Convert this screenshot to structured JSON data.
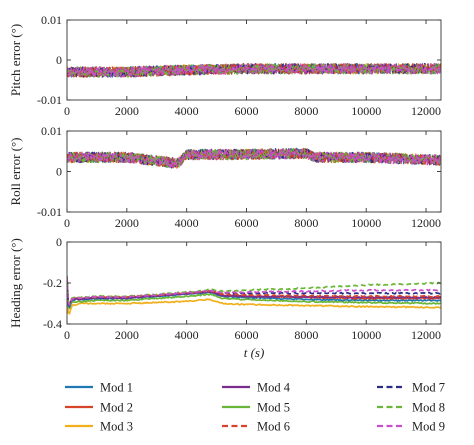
{
  "chart_data": [
    {
      "type": "line",
      "panel": "pitch",
      "ylabel": "Pitch error (°)",
      "xlim": [
        0,
        12500
      ],
      "ylim": [
        -0.01,
        0.01
      ],
      "xticks": [
        0,
        2000,
        4000,
        6000,
        8000,
        10000,
        12000
      ],
      "yticks": [
        0.01,
        0,
        -0.01
      ],
      "ytick_labels": [
        "0.01",
        "0",
        "-0.01"
      ],
      "xtick_labels": [
        "0",
        "2000",
        "4000",
        "6000",
        "8000",
        "10000",
        "12000"
      ],
      "grid": false,
      "series": [
        {
          "name": "Mod 1",
          "x": [
            0,
            2000,
            4000,
            6000,
            8000,
            10000,
            12500
          ],
          "y": [
            -0.003,
            -0.003,
            -0.0025,
            -0.0022,
            -0.0022,
            -0.0022,
            -0.0022
          ]
        },
        {
          "name": "Mod 2",
          "x": [
            0,
            2000,
            4000,
            6000,
            8000,
            10000,
            12500
          ],
          "y": [
            -0.003,
            -0.003,
            -0.0025,
            -0.0022,
            -0.0022,
            -0.0022,
            -0.0022
          ]
        },
        {
          "name": "Mod 3",
          "x": [
            0,
            2000,
            4000,
            6000,
            8000,
            10000,
            12500
          ],
          "y": [
            -0.003,
            -0.003,
            -0.0025,
            -0.0022,
            -0.0022,
            -0.0022,
            -0.0022
          ]
        },
        {
          "name": "Mod 4",
          "x": [
            0,
            2000,
            4000,
            6000,
            8000,
            10000,
            12500
          ],
          "y": [
            -0.003,
            -0.003,
            -0.0025,
            -0.0022,
            -0.0022,
            -0.0022,
            -0.0022
          ]
        },
        {
          "name": "Mod 5",
          "x": [
            0,
            2000,
            4000,
            6000,
            8000,
            10000,
            12500
          ],
          "y": [
            -0.003,
            -0.003,
            -0.0025,
            -0.0022,
            -0.0022,
            -0.0022,
            -0.0022
          ]
        },
        {
          "name": "Mod 6",
          "x": [
            0,
            2000,
            4000,
            6000,
            8000,
            10000,
            12500
          ],
          "y": [
            -0.003,
            -0.003,
            -0.0025,
            -0.0022,
            -0.0022,
            -0.0022,
            -0.0022
          ]
        },
        {
          "name": "Mod 7",
          "x": [
            0,
            2000,
            4000,
            6000,
            8000,
            10000,
            12500
          ],
          "y": [
            -0.003,
            -0.003,
            -0.0025,
            -0.0022,
            -0.0022,
            -0.0022,
            -0.0022
          ]
        },
        {
          "name": "Mod 8",
          "x": [
            0,
            2000,
            4000,
            6000,
            8000,
            10000,
            12500
          ],
          "y": [
            -0.003,
            -0.003,
            -0.0025,
            -0.0022,
            -0.0022,
            -0.0022,
            -0.0022
          ]
        },
        {
          "name": "Mod 9",
          "x": [
            0,
            2000,
            4000,
            6000,
            8000,
            10000,
            12500
          ],
          "y": [
            -0.003,
            -0.003,
            -0.0025,
            -0.0022,
            -0.0022,
            -0.0022,
            -0.0022
          ]
        }
      ]
    },
    {
      "type": "line",
      "panel": "roll",
      "ylabel": "Roll error (°)",
      "xlim": [
        0,
        12500
      ],
      "ylim": [
        -0.01,
        0.01
      ],
      "xticks": [
        0,
        2000,
        4000,
        6000,
        8000,
        10000,
        12000
      ],
      "yticks": [
        0.01,
        0,
        -0.01
      ],
      "ytick_labels": [
        "0.01",
        "0",
        "-0.01"
      ],
      "xtick_labels": [
        "0",
        "2000",
        "4000",
        "6000",
        "8000",
        "10000",
        "12000"
      ],
      "grid": false,
      "series": [
        {
          "name": "Mod 1",
          "x": [
            0,
            2000,
            3700,
            4000,
            6000,
            8000,
            8300,
            10000,
            12500
          ],
          "y": [
            0.0035,
            0.0035,
            0.002,
            0.0042,
            0.0042,
            0.0045,
            0.0035,
            0.0035,
            0.0028
          ]
        },
        {
          "name": "Mod 2",
          "x": [
            0,
            2000,
            3700,
            4000,
            6000,
            8000,
            8300,
            10000,
            12500
          ],
          "y": [
            0.0035,
            0.0035,
            0.002,
            0.0042,
            0.0042,
            0.0045,
            0.0035,
            0.0035,
            0.0028
          ]
        },
        {
          "name": "Mod 3",
          "x": [
            0,
            2000,
            3700,
            4000,
            6000,
            8000,
            8300,
            10000,
            12500
          ],
          "y": [
            0.0035,
            0.0035,
            0.002,
            0.0042,
            0.0042,
            0.0045,
            0.0035,
            0.0035,
            0.0028
          ]
        },
        {
          "name": "Mod 4",
          "x": [
            0,
            2000,
            3700,
            4000,
            6000,
            8000,
            8300,
            10000,
            12500
          ],
          "y": [
            0.0035,
            0.0035,
            0.002,
            0.0042,
            0.0042,
            0.0045,
            0.0035,
            0.0035,
            0.0028
          ]
        },
        {
          "name": "Mod 5",
          "x": [
            0,
            2000,
            3700,
            4000,
            6000,
            8000,
            8300,
            10000,
            12500
          ],
          "y": [
            0.0035,
            0.0035,
            0.002,
            0.0042,
            0.0042,
            0.0045,
            0.0035,
            0.0035,
            0.0028
          ]
        },
        {
          "name": "Mod 6",
          "x": [
            0,
            2000,
            3700,
            4000,
            6000,
            8000,
            8300,
            10000,
            12500
          ],
          "y": [
            0.0035,
            0.0035,
            0.002,
            0.0042,
            0.0042,
            0.0045,
            0.0035,
            0.0035,
            0.0028
          ]
        },
        {
          "name": "Mod 7",
          "x": [
            0,
            2000,
            3700,
            4000,
            6000,
            8000,
            8300,
            10000,
            12500
          ],
          "y": [
            0.0035,
            0.0035,
            0.002,
            0.0042,
            0.0042,
            0.0045,
            0.0035,
            0.0035,
            0.0028
          ]
        },
        {
          "name": "Mod 8",
          "x": [
            0,
            2000,
            3700,
            4000,
            6000,
            8000,
            8300,
            10000,
            12500
          ],
          "y": [
            0.0035,
            0.0035,
            0.002,
            0.0042,
            0.0042,
            0.0045,
            0.0035,
            0.0035,
            0.0028
          ]
        },
        {
          "name": "Mod 9",
          "x": [
            0,
            2000,
            3700,
            4000,
            6000,
            8000,
            8300,
            10000,
            12500
          ],
          "y": [
            0.0035,
            0.0035,
            0.002,
            0.0042,
            0.0042,
            0.0045,
            0.0035,
            0.0035,
            0.0028
          ]
        }
      ]
    },
    {
      "type": "line",
      "panel": "heading",
      "ylabel": "Heading error (°)",
      "xlabel": "t (s)",
      "xlim": [
        0,
        12500
      ],
      "ylim": [
        -0.4,
        0
      ],
      "xticks": [
        0,
        2000,
        4000,
        6000,
        8000,
        10000,
        12000
      ],
      "yticks": [
        0,
        -0.2,
        -0.4
      ],
      "ytick_labels": [
        "0",
        "-0.2",
        "-0.4"
      ],
      "xtick_labels": [
        "0",
        "2000",
        "4000",
        "6000",
        "8000",
        "10000",
        "12000"
      ],
      "grid": false,
      "series": [
        {
          "name": "Mod 1",
          "x": [
            0,
            50,
            150,
            300,
            500,
            1000,
            2000,
            3000,
            4000,
            4800,
            5000,
            5200,
            6000,
            8000,
            10000,
            12500
          ],
          "y": [
            -0.18,
            -0.33,
            -0.285,
            -0.28,
            -0.28,
            -0.275,
            -0.275,
            -0.265,
            -0.255,
            -0.245,
            -0.255,
            -0.265,
            -0.27,
            -0.28,
            -0.285,
            -0.285
          ]
        },
        {
          "name": "Mod 2",
          "x": [
            0,
            50,
            150,
            300,
            500,
            1000,
            2000,
            3000,
            4000,
            4800,
            5000,
            5200,
            6000,
            8000,
            10000,
            12500
          ],
          "y": [
            -0.17,
            -0.32,
            -0.28,
            -0.275,
            -0.275,
            -0.27,
            -0.27,
            -0.26,
            -0.25,
            -0.24,
            -0.25,
            -0.26,
            -0.265,
            -0.27,
            -0.275,
            -0.275
          ]
        },
        {
          "name": "Mod 3",
          "x": [
            0,
            50,
            150,
            300,
            500,
            1000,
            2000,
            3000,
            4000,
            4800,
            5000,
            5200,
            6000,
            8000,
            10000,
            12500
          ],
          "y": [
            -0.22,
            -0.37,
            -0.31,
            -0.305,
            -0.3,
            -0.3,
            -0.3,
            -0.295,
            -0.29,
            -0.28,
            -0.29,
            -0.3,
            -0.305,
            -0.31,
            -0.315,
            -0.32
          ]
        },
        {
          "name": "Mod 4",
          "x": [
            0,
            50,
            150,
            300,
            500,
            1000,
            2000,
            3000,
            4000,
            4800,
            5000,
            5200,
            6000,
            8000,
            10000,
            12500
          ],
          "y": [
            -0.175,
            -0.325,
            -0.28,
            -0.278,
            -0.278,
            -0.273,
            -0.273,
            -0.262,
            -0.252,
            -0.242,
            -0.252,
            -0.262,
            -0.265,
            -0.268,
            -0.27,
            -0.27
          ]
        },
        {
          "name": "Mod 5",
          "x": [
            0,
            50,
            150,
            300,
            500,
            1000,
            2000,
            3000,
            4000,
            4800,
            5000,
            5200,
            6000,
            8000,
            10000,
            12500
          ],
          "y": [
            -0.19,
            -0.34,
            -0.295,
            -0.29,
            -0.29,
            -0.285,
            -0.285,
            -0.275,
            -0.265,
            -0.255,
            -0.265,
            -0.275,
            -0.28,
            -0.29,
            -0.295,
            -0.3
          ]
        },
        {
          "name": "Mod 6",
          "x": [
            0,
            50,
            150,
            300,
            500,
            1000,
            2000,
            3000,
            4000,
            4800,
            5000,
            5200,
            6000,
            8000,
            10000,
            12500
          ],
          "y": [
            -0.17,
            -0.32,
            -0.278,
            -0.273,
            -0.273,
            -0.268,
            -0.268,
            -0.258,
            -0.248,
            -0.238,
            -0.246,
            -0.255,
            -0.258,
            -0.262,
            -0.265,
            -0.265
          ]
        },
        {
          "name": "Mod 7",
          "x": [
            0,
            50,
            150,
            300,
            500,
            1000,
            2000,
            3000,
            4000,
            4800,
            5000,
            5200,
            6000,
            8000,
            10000,
            12500
          ],
          "y": [
            -0.175,
            -0.32,
            -0.28,
            -0.275,
            -0.275,
            -0.27,
            -0.27,
            -0.26,
            -0.25,
            -0.24,
            -0.245,
            -0.25,
            -0.25,
            -0.25,
            -0.25,
            -0.25
          ]
        },
        {
          "name": "Mod 8",
          "x": [
            0,
            50,
            150,
            300,
            500,
            1000,
            2000,
            3000,
            4000,
            4800,
            5000,
            5200,
            6000,
            8000,
            10000,
            12500
          ],
          "y": [
            -0.165,
            -0.315,
            -0.275,
            -0.27,
            -0.27,
            -0.265,
            -0.265,
            -0.255,
            -0.245,
            -0.232,
            -0.238,
            -0.24,
            -0.235,
            -0.225,
            -0.21,
            -0.2
          ]
        },
        {
          "name": "Mod 9",
          "x": [
            0,
            50,
            150,
            300,
            500,
            1000,
            2000,
            3000,
            4000,
            4800,
            5000,
            5200,
            6000,
            8000,
            10000,
            12500
          ],
          "y": [
            -0.172,
            -0.318,
            -0.278,
            -0.273,
            -0.273,
            -0.268,
            -0.268,
            -0.258,
            -0.248,
            -0.238,
            -0.243,
            -0.247,
            -0.245,
            -0.24,
            -0.235,
            -0.235
          ]
        }
      ]
    }
  ],
  "legend": {
    "placement": "bottom",
    "items": [
      {
        "name": "Mod 1",
        "color": "#1f77b4",
        "dash": "solid"
      },
      {
        "name": "Mod 2",
        "color": "#d6452a",
        "dash": "solid"
      },
      {
        "name": "Mod 3",
        "color": "#f2b01e",
        "dash": "solid"
      },
      {
        "name": "Mod 4",
        "color": "#7b2d8e",
        "dash": "solid"
      },
      {
        "name": "Mod 5",
        "color": "#6ab636",
        "dash": "solid"
      },
      {
        "name": "Mod 6",
        "color": "#d6452a",
        "dash": "dashed"
      },
      {
        "name": "Mod 7",
        "color": "#2b2b8c",
        "dash": "dashed"
      },
      {
        "name": "Mod 8",
        "color": "#6ab636",
        "dash": "dashed"
      },
      {
        "name": "Mod 9",
        "color": "#c84fc9",
        "dash": "dashed"
      }
    ]
  }
}
